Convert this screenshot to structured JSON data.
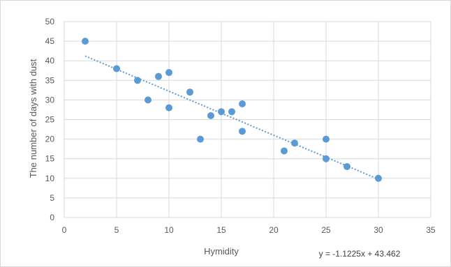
{
  "chart_data": {
    "type": "scatter",
    "title": "",
    "xlabel": "Hymidity",
    "ylabel": "The number of days with dust",
    "xlim": [
      0,
      35
    ],
    "ylim": [
      0,
      50
    ],
    "xticks": [
      0,
      5,
      10,
      15,
      20,
      25,
      30,
      35
    ],
    "yticks": [
      0,
      5,
      10,
      15,
      20,
      25,
      30,
      35,
      40,
      45,
      50
    ],
    "grid": true,
    "colors": {
      "points": "#5b9bd5",
      "trendline": "#5b9bd5",
      "grid": "#d9d9d9",
      "text": "#595959"
    },
    "series": [
      {
        "x": [
          2,
          5,
          7,
          8,
          9,
          10,
          10,
          12,
          13,
          14,
          15,
          16,
          17,
          17,
          21,
          22,
          25,
          25,
          27,
          30
        ],
        "y": [
          45,
          38,
          35,
          30,
          36,
          37,
          28,
          32,
          20,
          26,
          27,
          27,
          22,
          29,
          17,
          19,
          15,
          20,
          13,
          10
        ]
      }
    ],
    "trendline": {
      "type": "linear",
      "style": "dotted",
      "slope": -1.1225,
      "intercept": 43.462,
      "x_range": [
        2,
        30
      ],
      "equation_label": "y = -1.1225x + 43.462"
    }
  }
}
